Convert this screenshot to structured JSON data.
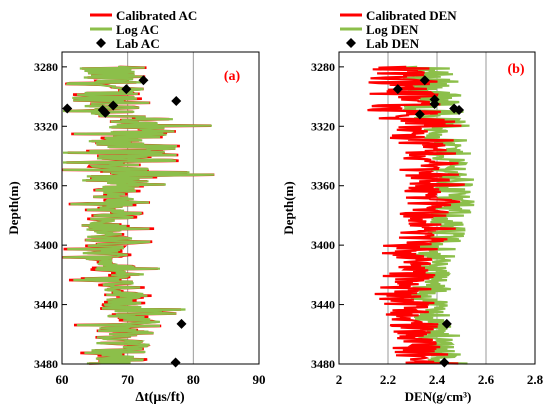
{
  "chart_data": [
    {
      "type": "line",
      "panel_label": "(a)",
      "xlabel": "Δt(μs/ft)",
      "ylabel": "Depth(m)",
      "xlim": [
        60,
        90
      ],
      "ylim": [
        3480,
        3270
      ],
      "x_ticks": [
        "60",
        "70",
        "80",
        "90"
      ],
      "y_ticks": [
        "3280",
        "3320",
        "3360",
        "3400",
        "3440",
        "3480"
      ],
      "grid": "vertical",
      "legend_position": "top-left",
      "series": [
        {
          "name": "Calibrated AC",
          "color": "#ff0000"
        },
        {
          "name": "Log AC",
          "color": "#8cbf4a"
        },
        {
          "name": "Lab AC",
          "color": "#000000",
          "points": [
            {
              "x": 72.4,
              "y": 3289
            },
            {
              "x": 69.8,
              "y": 3295
            },
            {
              "x": 77.4,
              "y": 3303
            },
            {
              "x": 67.8,
              "y": 3306
            },
            {
              "x": 66.2,
              "y": 3309
            },
            {
              "x": 60.8,
              "y": 3308
            },
            {
              "x": 66.6,
              "y": 3311
            },
            {
              "x": 78.2,
              "y": 3453
            },
            {
              "x": 77.3,
              "y": 3479
            }
          ]
        }
      ]
    },
    {
      "type": "line",
      "panel_label": "(b)",
      "xlabel": "DEN(g/cm³)",
      "ylabel": "Depth(m)",
      "xlim": [
        2.0,
        2.8
      ],
      "ylim": [
        3480,
        3270
      ],
      "x_ticks": [
        "2",
        "2.2",
        "2.4",
        "2.6",
        "2.8"
      ],
      "y_ticks": [
        "3280",
        "3320",
        "3360",
        "3400",
        "3440",
        "3480"
      ],
      "grid": "vertical",
      "legend_position": "top-left",
      "series": [
        {
          "name": "Calibrated DEN",
          "color": "#ff0000"
        },
        {
          "name": "Log DEN",
          "color": "#8cbf4a"
        },
        {
          "name": "Lab DEN",
          "color": "#000000",
          "points": [
            {
              "x": 2.35,
              "y": 3289
            },
            {
              "x": 2.24,
              "y": 3295
            },
            {
              "x": 2.39,
              "y": 3302
            },
            {
              "x": 2.39,
              "y": 3305
            },
            {
              "x": 2.47,
              "y": 3308
            },
            {
              "x": 2.49,
              "y": 3309
            },
            {
              "x": 2.33,
              "y": 3312
            },
            {
              "x": 2.44,
              "y": 3453
            },
            {
              "x": 2.43,
              "y": 3479
            }
          ]
        }
      ]
    }
  ]
}
